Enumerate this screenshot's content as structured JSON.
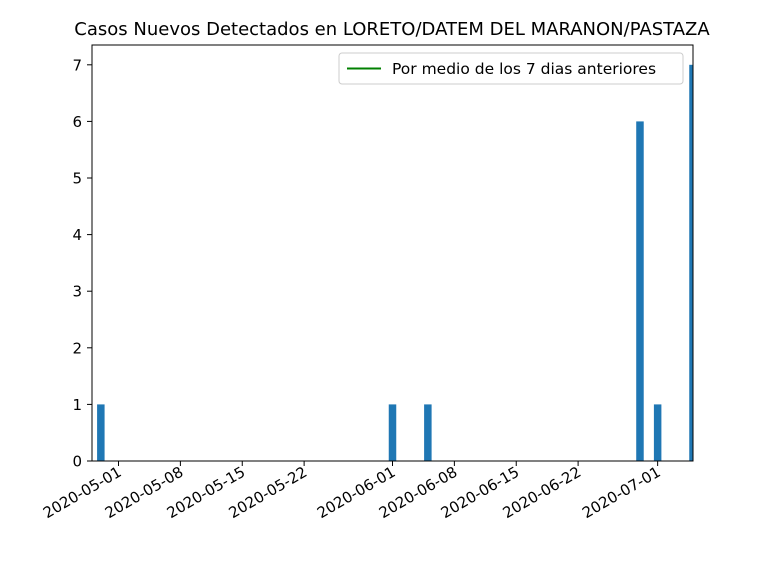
{
  "chart_data": {
    "type": "bar",
    "title": "Casos Nuevos Detectados en LORETO/DATEM DEL MARANON/PASTAZA",
    "xlabel": "",
    "ylabel": "",
    "xlim": [
      "2020-04-28",
      "2020-07-05"
    ],
    "ylim": [
      0,
      7.35
    ],
    "yticks": [
      0,
      1,
      2,
      3,
      4,
      5,
      6,
      7
    ],
    "xticks": [
      "2020-05-01",
      "2020-05-08",
      "2020-05-15",
      "2020-05-22",
      "2020-06-01",
      "2020-06-08",
      "2020-06-15",
      "2020-06-22",
      "2020-07-01"
    ],
    "bar_color": "#1f77b4",
    "line_color": "#008000",
    "legend": {
      "label": "Por medio de los 7 dias anteriores",
      "placement": "upper right"
    },
    "series": [
      {
        "name": "Casos Nuevos",
        "x": [
          "2020-04-29",
          "2020-06-01",
          "2020-06-05",
          "2020-06-29",
          "2020-07-01",
          "2020-07-05"
        ],
        "values": [
          1,
          1,
          1,
          6,
          1,
          7
        ]
      }
    ],
    "grid": false
  }
}
